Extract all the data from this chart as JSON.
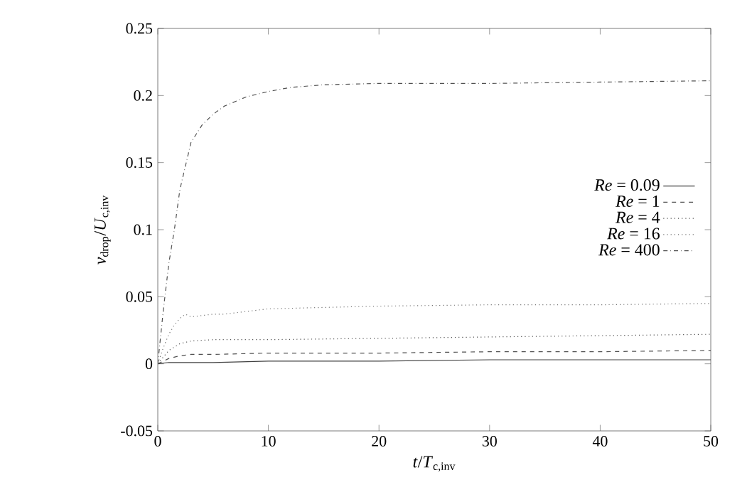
{
  "chart_data": {
    "type": "line",
    "xlabel": "*t*/*T*$_{c,inv}$",
    "ylabel": "*v*$_{drop}$/*U*$_{c,inv}$",
    "xlim": [
      0,
      50
    ],
    "xticks": [
      0,
      10,
      20,
      30,
      40,
      50
    ],
    "ylim": [
      -0.05,
      0.25
    ],
    "yticks": [
      -0.05,
      0,
      0.05,
      0.1,
      0.15,
      0.2,
      0.25
    ],
    "legend": "right",
    "grid": false,
    "marker": "none",
    "series": [
      {
        "name": "*Re* = 0.09",
        "color": "#404040",
        "line_style": "solid",
        "x": [
          0,
          1,
          3,
          5,
          10,
          20,
          30,
          40,
          50
        ],
        "values": [
          0,
          0.001,
          0.001,
          0.001,
          0.002,
          0.002,
          0.003,
          0.003,
          0.003
        ]
      },
      {
        "name": "*Re* = 1",
        "color": "#505050",
        "line_style": "dashed",
        "x": [
          0,
          1,
          2,
          3,
          5,
          10,
          20,
          30,
          40,
          50
        ],
        "values": [
          0,
          0.004,
          0.006,
          0.007,
          0.007,
          0.008,
          0.008,
          0.009,
          0.009,
          0.01
        ]
      },
      {
        "name": "*Re* = 4",
        "color": "#505050",
        "line_style": "dotted",
        "x": [
          0,
          1,
          2,
          3,
          5,
          10,
          20,
          30,
          40,
          50
        ],
        "values": [
          0,
          0.01,
          0.015,
          0.017,
          0.018,
          0.018,
          0.019,
          0.02,
          0.021,
          0.022
        ]
      },
      {
        "name": "*Re* = 16",
        "color": "#707070",
        "line_style": "dotted",
        "x": [
          0,
          0.5,
          1,
          1.5,
          2,
          2.5,
          3,
          4,
          5,
          6,
          8,
          10,
          15,
          20,
          30,
          40,
          50
        ],
        "values": [
          0,
          0.012,
          0.022,
          0.029,
          0.034,
          0.037,
          0.035,
          0.036,
          0.037,
          0.037,
          0.039,
          0.041,
          0.042,
          0.043,
          0.044,
          0.044,
          0.045
        ]
      },
      {
        "name": "*Re* = 400",
        "color": "#505050",
        "line_style": "dashdot",
        "x": [
          0,
          0.5,
          1,
          1.5,
          2,
          3,
          4,
          5,
          6,
          8,
          10,
          12,
          15,
          20,
          30,
          40,
          50
        ],
        "values": [
          0,
          0.04,
          0.075,
          0.1,
          0.13,
          0.165,
          0.178,
          0.186,
          0.192,
          0.199,
          0.203,
          0.206,
          0.208,
          0.209,
          0.209,
          0.21,
          0.211
        ]
      }
    ]
  }
}
